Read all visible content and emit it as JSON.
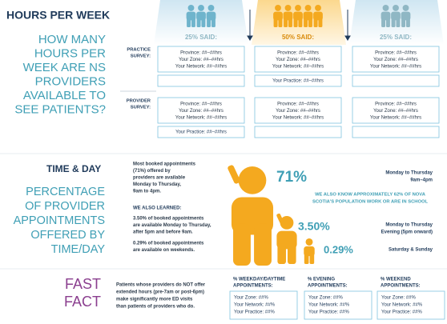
{
  "hours_per_week": {
    "heading": "HOURS PER WEEK",
    "question": [
      "HOW MANY",
      "HOURS PER",
      "WEEK ARE NS",
      "PROVIDERS",
      "AVAILABLE TO",
      "SEE PATIENTS?"
    ],
    "columns": [
      {
        "label": "25% SAID:"
      },
      {
        "label": "50% SAID:"
      },
      {
        "label": "25% SAID:"
      }
    ],
    "practice_survey": {
      "label": [
        "PRACTICE",
        "SURVEY:"
      ],
      "columns": [
        {
          "lines": [
            "Province: ##–##hrs",
            "Your Zone: ##–##hrs",
            "Your Network: ##–##hrs"
          ]
        },
        {
          "lines": [
            "Province: ##–##hrs",
            "Your Zone: ##–##hrs",
            "Your Network: ##–##hrs"
          ],
          "practice": "Your Practice: ##–##hrs"
        },
        {
          "lines": [
            "Province: ##–##hrs",
            "Your Zone: ##–##hrs",
            "Your Network: ##–##hrs"
          ]
        }
      ]
    },
    "provider_survey": {
      "label": [
        "PROVIDER",
        "SURVEY:"
      ],
      "columns": [
        {
          "lines": [
            "Province: ##–##hrs",
            "Your Zone: ##–##hrs",
            "Your Network: ##–##hrs"
          ],
          "practice": "Your Practice: ##–##hrs"
        },
        {
          "lines": [
            "Province: ##–##hrs",
            "Your Zone: ##–##hrs",
            "Your Network: ##–##hrs"
          ]
        },
        {
          "lines": [
            "Province: ##–##hrs",
            "Your Zone: ##–##hrs",
            "Your Network: ##–##hrs"
          ]
        }
      ]
    }
  },
  "time_and_day": {
    "heading": "TIME & DAY",
    "question": [
      "PERCENTAGE",
      "OF PROVIDER",
      "APPOINTMENTS",
      "OFFERED BY",
      "TIME/DAY"
    ],
    "intro": [
      "Most booked appointments",
      "(71%) offered by",
      "providers are available",
      "Monday to Thursday,",
      "9am to 4pm."
    ],
    "learned_heading": "WE ALSO LEARNED:",
    "learned_1": [
      "3.50% of booked appointments",
      "are available Monday to Thursday,",
      "after 5pm and before 9am."
    ],
    "learned_2": [
      "0.29% of booked appointments",
      "are available on weekends."
    ],
    "stats": [
      {
        "value": "71%",
        "label": [
          "Monday to Thursday",
          "9am–4pm"
        ]
      },
      {
        "value": "3.50%",
        "label": [
          "Monday to Thursday",
          "Evening (5pm onward)"
        ]
      },
      {
        "value": "0.29%",
        "label": [
          "Saturday & Sunday"
        ]
      }
    ],
    "note": [
      "WE ALSO KNOW APPROXIMATELY 62% OF NOVA",
      "SCOTIA'S POPULATION WORK OR ARE IN SCHOOL"
    ]
  },
  "fast_fact": {
    "heading": [
      "FAST",
      "FACT"
    ],
    "text": [
      "Patients whose providers do NOT offer",
      "extended hours (pre-7am or post-6pm)",
      "make significantly more ED visits",
      "than patients of providers who do."
    ],
    "boxes": [
      {
        "title": [
          "% WEEKDAY/DAYTIME",
          "APPOINTMENTS:"
        ],
        "lines": [
          "Your Zone: ##%",
          "Your Network: ##%",
          "Your Practice: ##%"
        ]
      },
      {
        "title": [
          "% EVENING",
          "APPOINTMENTS:"
        ],
        "lines": [
          "Your Zone: ##%",
          "Your Network: ##%",
          "Your Practice: ##%"
        ]
      },
      {
        "title": [
          "% WEEKEND",
          "APPOINTMENTS:"
        ],
        "lines": [
          "Your Zone: ##%",
          "Your Network: ##%",
          "Your Practice: ##%"
        ]
      }
    ]
  }
}
